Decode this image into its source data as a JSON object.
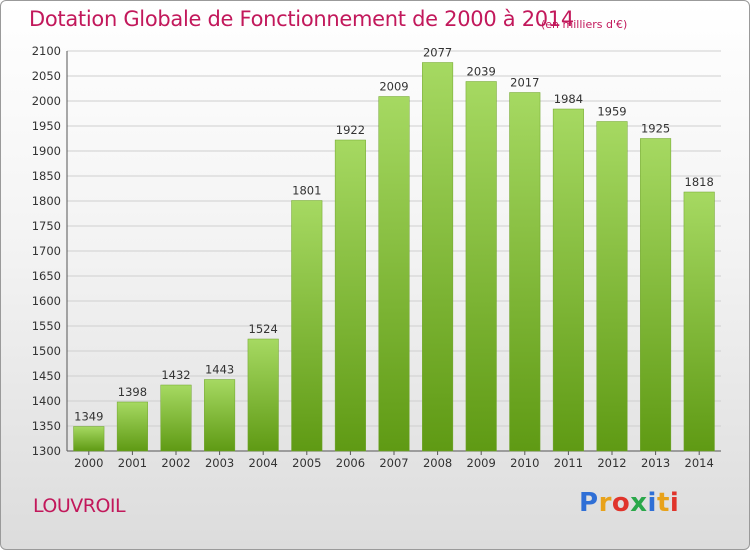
{
  "header": {
    "title": "Dotation Globale de Fonctionnement de 2000 à 2014",
    "unit": "(en milliers d'€)"
  },
  "footer": {
    "city": "LOUVROIL",
    "logo_letters": [
      "P",
      "r",
      "o",
      "x",
      "i",
      "t",
      "i"
    ]
  },
  "colors": {
    "title": "#c2185b",
    "bar_top": "#a6d962",
    "bar_bottom": "#5f9a14",
    "grid": "#cfcfcf",
    "logo": [
      "#2f6fd6",
      "#e8a21a",
      "#e0342b",
      "#2aa84a",
      "#2f6fd6",
      "#e8a21a",
      "#e0342b"
    ]
  },
  "chart_data": {
    "type": "bar",
    "title": "Dotation Globale de Fonctionnement de 2000 à 2014",
    "subtitle": "(en milliers d'€)",
    "xlabel": "",
    "ylabel": "",
    "categories": [
      "2000",
      "2001",
      "2002",
      "2003",
      "2004",
      "2005",
      "2006",
      "2007",
      "2008",
      "2009",
      "2010",
      "2011",
      "2012",
      "2013",
      "2014"
    ],
    "values": [
      1349,
      1398,
      1432,
      1443,
      1524,
      1801,
      1922,
      2009,
      2077,
      2039,
      2017,
      1984,
      1959,
      1925,
      1818
    ],
    "ylim": [
      1300,
      2100
    ],
    "yticks": [
      1300,
      1350,
      1400,
      1450,
      1500,
      1550,
      1600,
      1650,
      1700,
      1750,
      1800,
      1850,
      1900,
      1950,
      2000,
      2050,
      2100
    ],
    "grid": true,
    "legend": "none"
  }
}
